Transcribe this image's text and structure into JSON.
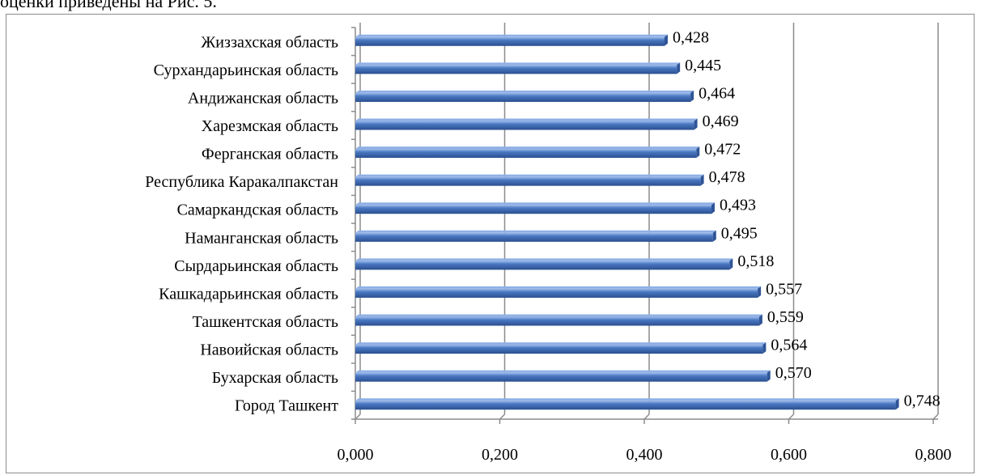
{
  "page": {
    "top_text": "оценки приведены на Рис. 5."
  },
  "chart_data": {
    "type": "bar",
    "orientation": "horizontal",
    "categories": [
      "Жиззахская область",
      "Сурхандарьинская область",
      "Андижанская область",
      "Харезмская область",
      "Ферганская область",
      "Республика Каракалпакстан",
      "Самаркандская область",
      "Наманганская область",
      "Сырдарьинская область",
      "Кашкадарьинская область",
      "Ташкентская область",
      "Навоийская область",
      "Бухарская область",
      "Город Ташкент"
    ],
    "values": [
      0.428,
      0.445,
      0.464,
      0.469,
      0.472,
      0.478,
      0.493,
      0.495,
      0.518,
      0.557,
      0.559,
      0.564,
      0.57,
      0.748
    ],
    "value_labels": [
      "0,428",
      "0,445",
      "0,464",
      "0,469",
      "0,472",
      "0,478",
      "0,493",
      "0,495",
      "0,518",
      "0,557",
      "0,559",
      "0,564",
      "0,570",
      "0,748"
    ],
    "x_ticks": [
      0.0,
      0.2,
      0.4,
      0.6,
      0.8
    ],
    "x_tick_labels": [
      "0,000",
      "0,200",
      "0,400",
      "0,600",
      "0,800"
    ],
    "xlim": [
      0,
      0.8
    ],
    "title": "",
    "xlabel": "",
    "ylabel": "",
    "grid": "vertical",
    "legend": "none",
    "colors": {
      "bar": "#4a78c2",
      "bar_dark": "#2f5597",
      "bar_light": "#8fb0e6",
      "grid": "#8c8c8c",
      "frame": "#8c8c8c"
    }
  }
}
